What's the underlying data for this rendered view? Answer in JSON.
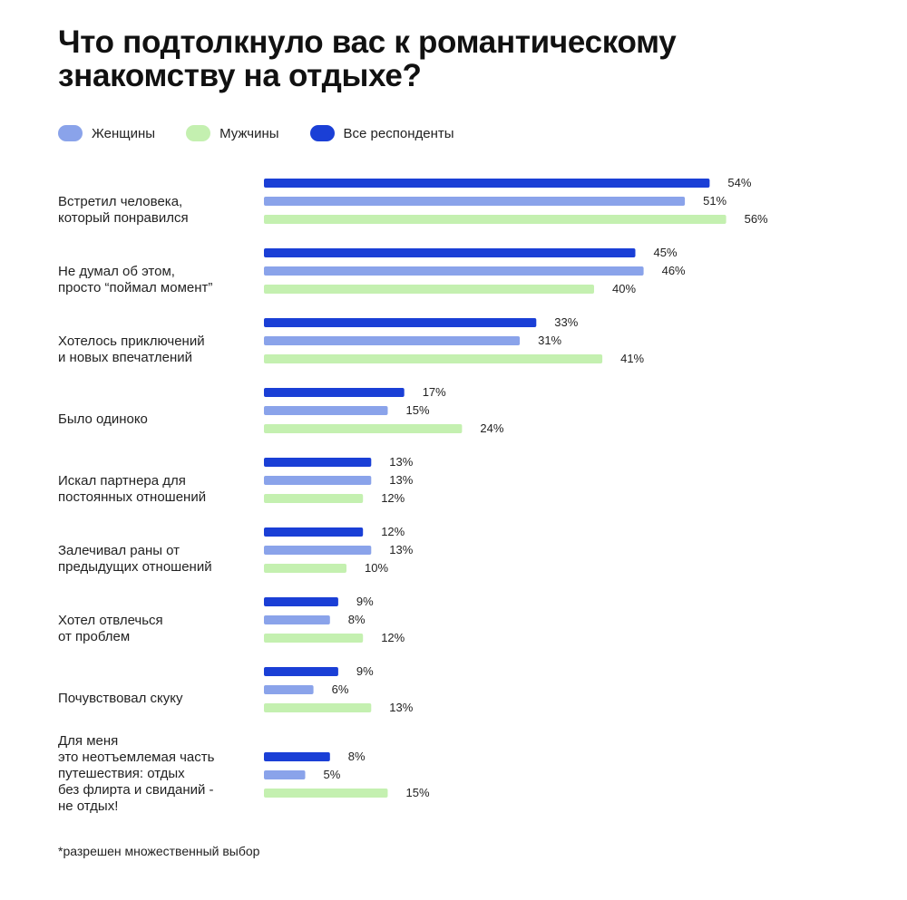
{
  "chart_data": {
    "type": "bar",
    "orientation": "horizontal",
    "title": "Что подтолкнуло вас к романтическому знакомству на отдыхе?",
    "categories": [
      "Встретил человека,\nкоторый понравился",
      "Не думал об этом,\nпросто “поймал момент”",
      "Хотелось приключений\nи новых впечатлений",
      "Было одиноко",
      "Искал партнера для\nпостоянных отношений",
      "Залечивал раны от\nпредыдущих отношений",
      "Хотел отвлечься\nот проблем",
      "Почувствовал скуку",
      "Для меня\nэто неотъемлемая часть\nпутешествия: отдых\nбез флирта и свиданий -\nне отдых!"
    ],
    "series": [
      {
        "name": "Все респонденты",
        "color": "#1a3fd6",
        "values": [
          54,
          45,
          33,
          17,
          13,
          12,
          9,
          9,
          8
        ]
      },
      {
        "name": "Женщины",
        "color": "#8aa3ea",
        "values": [
          51,
          46,
          31,
          15,
          13,
          13,
          8,
          6,
          5
        ]
      },
      {
        "name": "Мужчины",
        "color": "#c4f0b0",
        "values": [
          56,
          40,
          41,
          24,
          12,
          10,
          12,
          13,
          15
        ]
      }
    ],
    "value_suffix": "%",
    "xlim": [
      0,
      56
    ]
  },
  "legend": [
    {
      "name": "Женщины",
      "color": "#8aa3ea"
    },
    {
      "name": "Мужчины",
      "color": "#c4f0b0"
    },
    {
      "name": "Все респонденты",
      "color": "#1a3fd6"
    }
  ],
  "footnote": "*разрешен множественный выбор"
}
